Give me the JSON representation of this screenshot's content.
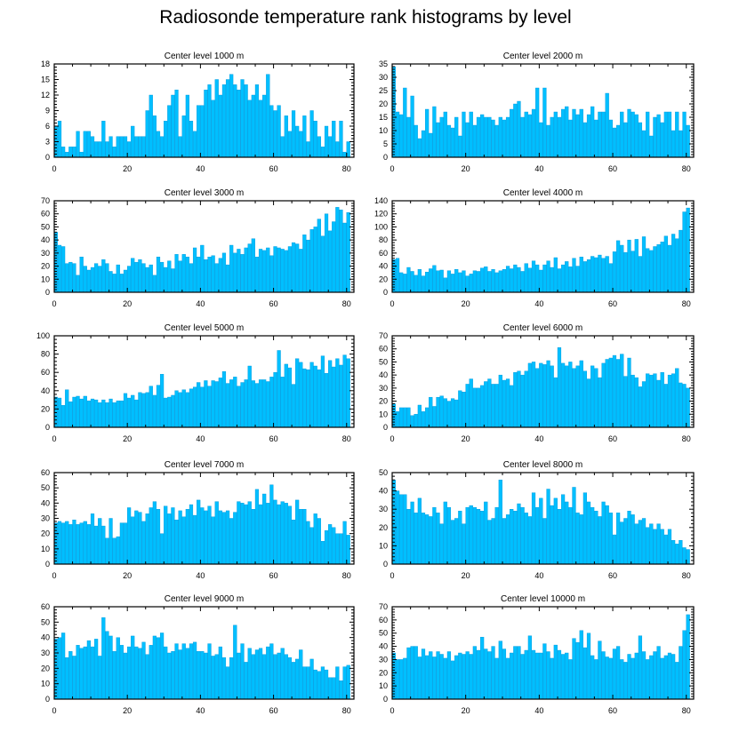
{
  "title": "Radiosonde temperature rank histograms by level",
  "colors": {
    "bar": "#00bfff",
    "bar_edge": "#0095d9",
    "axis": "#000000"
  },
  "chart_data": [
    {
      "type": "bar",
      "title": "Center level 1000 m",
      "xlim": [
        0,
        82
      ],
      "xticks": [
        0,
        20,
        40,
        60,
        80
      ],
      "ylim": [
        0,
        18
      ],
      "yticks": [
        0,
        3,
        6,
        9,
        12,
        15,
        18
      ],
      "values": [
        6,
        7,
        2,
        1,
        2,
        2,
        5,
        1,
        5,
        5,
        4,
        3,
        3,
        7,
        3,
        4,
        2,
        4,
        4,
        4,
        3,
        6,
        4,
        4,
        4,
        9,
        12,
        8,
        5,
        4,
        7,
        10,
        12,
        13,
        4,
        8,
        12,
        7,
        5,
        10,
        10,
        13,
        14,
        11,
        15,
        12,
        14,
        15,
        16,
        14,
        13,
        15,
        14,
        11,
        12,
        14,
        11,
        12,
        16,
        10,
        9,
        10,
        4,
        8,
        5,
        9,
        6,
        5,
        8,
        3,
        9,
        7,
        4,
        2,
        6,
        4,
        7,
        3,
        7,
        1,
        3
      ],
      "xlabel": "",
      "ylabel": ""
    },
    {
      "type": "bar",
      "title": "Center level 2000 m",
      "xlim": [
        0,
        82
      ],
      "xticks": [
        0,
        20,
        40,
        60,
        80
      ],
      "ylim": [
        0,
        35
      ],
      "yticks": [
        0,
        5,
        10,
        15,
        20,
        25,
        30,
        35
      ],
      "values": [
        34,
        17,
        16,
        26,
        15,
        23,
        12,
        7,
        10,
        18,
        9,
        19,
        13,
        15,
        17,
        12,
        11,
        15,
        8,
        17,
        13,
        17,
        12,
        15,
        16,
        15,
        15,
        14,
        12,
        15,
        14,
        15,
        18,
        20,
        21,
        15,
        17,
        16,
        18,
        26,
        13,
        26,
        12,
        15,
        17,
        15,
        18,
        19,
        14,
        18,
        16,
        18,
        13,
        16,
        19,
        14,
        17,
        17,
        24,
        14,
        11,
        12,
        17,
        13,
        18,
        17,
        16,
        13,
        10,
        17,
        8,
        15,
        16,
        13,
        17,
        17,
        10,
        17,
        10,
        17,
        12
      ],
      "xlabel": "",
      "ylabel": ""
    },
    {
      "type": "bar",
      "title": "Center level 3000 m",
      "xlim": [
        0,
        82
      ],
      "xticks": [
        0,
        20,
        40,
        60,
        80
      ],
      "ylim": [
        0,
        70
      ],
      "yticks": [
        0,
        10,
        20,
        30,
        40,
        50,
        60,
        70
      ],
      "values": [
        46,
        36,
        35,
        22,
        23,
        22,
        13,
        27,
        20,
        17,
        19,
        22,
        20,
        25,
        22,
        16,
        14,
        21,
        14,
        17,
        20,
        26,
        23,
        25,
        22,
        19,
        21,
        13,
        27,
        23,
        19,
        24,
        18,
        29,
        24,
        29,
        27,
        22,
        34,
        27,
        36,
        25,
        27,
        28,
        22,
        26,
        30,
        21,
        36,
        30,
        33,
        29,
        34,
        37,
        41,
        27,
        33,
        32,
        34,
        28,
        35,
        34,
        33,
        32,
        35,
        38,
        37,
        33,
        44,
        40,
        48,
        50,
        56,
        43,
        60,
        47,
        54,
        65,
        63,
        53,
        61
      ],
      "xlabel": "",
      "ylabel": ""
    },
    {
      "type": "bar",
      "title": "Center level 4000 m",
      "xlim": [
        0,
        82
      ],
      "xticks": [
        0,
        20,
        40,
        60,
        80
      ],
      "ylim": [
        0,
        140
      ],
      "yticks": [
        0,
        20,
        40,
        60,
        80,
        100,
        120,
        140
      ],
      "values": [
        50,
        52,
        30,
        28,
        38,
        32,
        26,
        35,
        25,
        31,
        36,
        41,
        33,
        34,
        22,
        33,
        28,
        35,
        30,
        33,
        25,
        28,
        33,
        32,
        37,
        39,
        32,
        35,
        30,
        33,
        35,
        40,
        36,
        42,
        38,
        32,
        44,
        37,
        48,
        42,
        34,
        42,
        48,
        38,
        53,
        36,
        42,
        47,
        39,
        52,
        40,
        54,
        47,
        50,
        55,
        53,
        57,
        52,
        55,
        44,
        62,
        79,
        72,
        61,
        80,
        63,
        81,
        55,
        85,
        67,
        64,
        70,
        73,
        77,
        86,
        72,
        89,
        82,
        95,
        123,
        129
      ],
      "xlabel": "",
      "ylabel": ""
    },
    {
      "type": "bar",
      "title": "Center level 5000 m",
      "xlim": [
        0,
        82
      ],
      "xticks": [
        0,
        20,
        40,
        60,
        80
      ],
      "ylim": [
        0,
        100
      ],
      "yticks": [
        0,
        20,
        40,
        60,
        80,
        100
      ],
      "values": [
        33,
        32,
        24,
        41,
        28,
        33,
        34,
        31,
        34,
        29,
        31,
        30,
        27,
        30,
        27,
        31,
        27,
        29,
        29,
        37,
        32,
        35,
        30,
        38,
        37,
        38,
        45,
        35,
        46,
        58,
        32,
        33,
        35,
        40,
        38,
        41,
        38,
        42,
        44,
        49,
        44,
        51,
        45,
        51,
        50,
        54,
        61,
        48,
        52,
        55,
        45,
        49,
        52,
        67,
        51,
        48,
        52,
        52,
        50,
        55,
        60,
        84,
        55,
        69,
        65,
        47,
        75,
        71,
        64,
        63,
        71,
        67,
        63,
        78,
        59,
        73,
        66,
        75,
        68,
        79,
        75
      ],
      "xlabel": "",
      "ylabel": ""
    },
    {
      "type": "bar",
      "title": "Center level 6000 m",
      "xlim": [
        0,
        82
      ],
      "xticks": [
        0,
        20,
        40,
        60,
        80
      ],
      "ylim": [
        0,
        70
      ],
      "yticks": [
        0,
        10,
        20,
        30,
        40,
        50,
        60,
        70
      ],
      "values": [
        18,
        12,
        15,
        15,
        15,
        9,
        10,
        17,
        12,
        15,
        23,
        16,
        23,
        24,
        22,
        20,
        22,
        21,
        28,
        27,
        33,
        37,
        30,
        30,
        32,
        35,
        37,
        33,
        33,
        40,
        36,
        37,
        32,
        42,
        43,
        40,
        43,
        49,
        50,
        45,
        49,
        48,
        51,
        47,
        38,
        61,
        49,
        47,
        50,
        45,
        47,
        51,
        43,
        37,
        47,
        45,
        38,
        49,
        52,
        53,
        55,
        52,
        56,
        39,
        53,
        40,
        38,
        31,
        35,
        41,
        40,
        41,
        36,
        42,
        33,
        40,
        41,
        45,
        34,
        33,
        30
      ],
      "xlabel": "",
      "ylabel": ""
    },
    {
      "type": "bar",
      "title": "Center level 7000 m",
      "xlim": [
        0,
        82
      ],
      "xticks": [
        0,
        20,
        40,
        60,
        80
      ],
      "ylim": [
        0,
        60
      ],
      "yticks": [
        0,
        10,
        20,
        30,
        40,
        50,
        60
      ],
      "values": [
        27,
        28,
        27,
        28,
        26,
        29,
        26,
        27,
        28,
        26,
        33,
        25,
        30,
        25,
        17,
        30,
        17,
        18,
        27,
        27,
        37,
        31,
        35,
        34,
        28,
        33,
        37,
        41,
        36,
        20,
        38,
        33,
        37,
        29,
        35,
        31,
        36,
        39,
        32,
        42,
        37,
        35,
        38,
        31,
        41,
        35,
        34,
        35,
        30,
        34,
        41,
        40,
        39,
        41,
        36,
        49,
        39,
        46,
        40,
        52,
        42,
        39,
        41,
        40,
        38,
        29,
        42,
        36,
        36,
        28,
        24,
        33,
        30,
        15,
        22,
        26,
        24,
        20,
        20,
        28,
        19
      ],
      "xlabel": "",
      "ylabel": ""
    },
    {
      "type": "bar",
      "title": "Center level 8000 m",
      "xlim": [
        0,
        82
      ],
      "xticks": [
        0,
        20,
        40,
        60,
        80
      ],
      "ylim": [
        0,
        50
      ],
      "yticks": [
        0,
        10,
        20,
        30,
        40,
        50
      ],
      "values": [
        46,
        40,
        38,
        38,
        30,
        34,
        28,
        36,
        28,
        27,
        26,
        31,
        28,
        22,
        34,
        31,
        24,
        25,
        29,
        22,
        31,
        32,
        31,
        30,
        29,
        34,
        24,
        25,
        31,
        46,
        25,
        27,
        30,
        29,
        33,
        31,
        28,
        26,
        39,
        31,
        36,
        25,
        41,
        32,
        36,
        30,
        38,
        34,
        31,
        42,
        28,
        27,
        39,
        34,
        31,
        29,
        26,
        34,
        32,
        28,
        16,
        28,
        23,
        25,
        29,
        27,
        22,
        24,
        25,
        20,
        22,
        19,
        22,
        19,
        16,
        19,
        13,
        11,
        13,
        9,
        8
      ],
      "xlabel": "",
      "ylabel": ""
    },
    {
      "type": "bar",
      "title": "Center level 9000 m",
      "xlim": [
        0,
        82
      ],
      "xticks": [
        0,
        20,
        40,
        60,
        80
      ],
      "ylim": [
        0,
        60
      ],
      "yticks": [
        0,
        10,
        20,
        30,
        40,
        50,
        60
      ],
      "values": [
        39,
        40,
        43,
        27,
        31,
        28,
        35,
        33,
        34,
        38,
        34,
        39,
        28,
        53,
        44,
        41,
        31,
        40,
        35,
        30,
        34,
        41,
        34,
        33,
        37,
        29,
        35,
        41,
        40,
        43,
        34,
        30,
        31,
        36,
        32,
        36,
        33,
        36,
        37,
        31,
        31,
        30,
        36,
        28,
        29,
        34,
        27,
        21,
        27,
        48,
        30,
        36,
        24,
        33,
        29,
        32,
        33,
        29,
        34,
        36,
        29,
        30,
        33,
        29,
        27,
        24,
        26,
        32,
        21,
        21,
        26,
        19,
        18,
        21,
        19,
        14,
        14,
        21,
        12,
        21,
        22
      ],
      "xlabel": "",
      "ylabel": ""
    },
    {
      "type": "bar",
      "title": "Center level 10000 m",
      "xlim": [
        0,
        82
      ],
      "xticks": [
        0,
        20,
        40,
        60,
        80
      ],
      "ylim": [
        0,
        70
      ],
      "yticks": [
        0,
        10,
        20,
        30,
        40,
        50,
        60,
        70
      ],
      "values": [
        35,
        30,
        30,
        31,
        39,
        40,
        40,
        32,
        38,
        33,
        36,
        32,
        36,
        34,
        31,
        36,
        29,
        33,
        35,
        34,
        36,
        34,
        40,
        37,
        47,
        38,
        36,
        40,
        31,
        44,
        38,
        31,
        35,
        40,
        40,
        34,
        37,
        48,
        37,
        35,
        35,
        42,
        36,
        31,
        41,
        37,
        34,
        35,
        30,
        46,
        43,
        52,
        39,
        50,
        33,
        30,
        44,
        36,
        32,
        31,
        38,
        40,
        30,
        28,
        34,
        31,
        35,
        48,
        36,
        30,
        33,
        36,
        40,
        31,
        33,
        35,
        34,
        28,
        40,
        52,
        64
      ],
      "xlabel": "",
      "ylabel": ""
    }
  ]
}
